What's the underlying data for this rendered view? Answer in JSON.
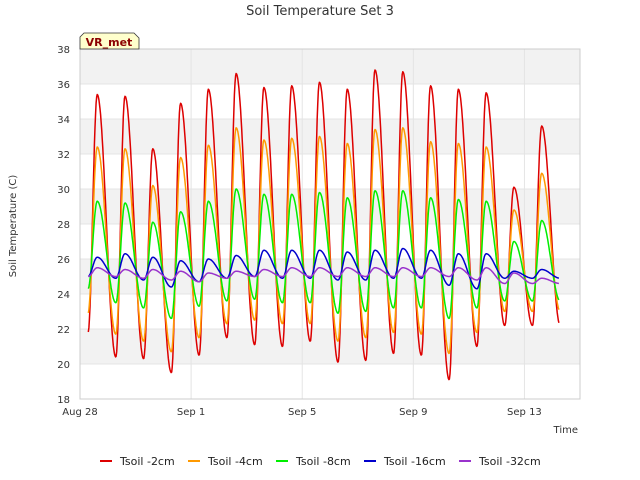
{
  "chart_data": {
    "type": "line",
    "title": "Soil Temperature Set 3",
    "xlabel": "Time",
    "ylabel": "Soil Temperature (C)",
    "tag": "VR_met",
    "x_unit": "days since Aug 28",
    "xlim": [
      0,
      18
    ],
    "ylim": [
      18,
      38
    ],
    "yticks": [
      18,
      20,
      22,
      24,
      26,
      28,
      30,
      32,
      34,
      36,
      38
    ],
    "xticks": [
      {
        "value": 0,
        "label": "Aug 28"
      },
      {
        "value": 4,
        "label": "Sep 1"
      },
      {
        "value": 8,
        "label": "Sep 5"
      },
      {
        "value": 12,
        "label": "Sep 9"
      },
      {
        "value": 16,
        "label": "Sep 13"
      }
    ],
    "grid": true,
    "legend_position": "bottom",
    "series": [
      {
        "name": "Tsoil -2cm",
        "color": "#dd0000",
        "daily_min": [
          21.8,
          20.4,
          20.3,
          19.5,
          20.5,
          21.5,
          21.1,
          21.0,
          21.3,
          20.1,
          20.2,
          20.6,
          20.5,
          19.1,
          21.0,
          22.2
        ],
        "daily_max": [
          35.4,
          35.3,
          32.3,
          34.9,
          35.7,
          36.6,
          35.8,
          35.9,
          36.1,
          35.7,
          36.8,
          36.7,
          35.9,
          35.7,
          35.5,
          30.1,
          33.6
        ]
      },
      {
        "name": "Tsoil -4cm",
        "color": "#ff9900",
        "daily_min": [
          22.9,
          21.7,
          21.3,
          20.7,
          21.5,
          22.3,
          22.5,
          22.3,
          22.3,
          21.3,
          21.5,
          21.8,
          21.7,
          20.6,
          21.8,
          23.0
        ],
        "daily_max": [
          32.4,
          32.3,
          30.2,
          31.8,
          32.5,
          33.5,
          32.8,
          32.9,
          33.0,
          32.6,
          33.4,
          33.5,
          32.7,
          32.6,
          32.4,
          28.8,
          30.9
        ]
      },
      {
        "name": "Tsoil -8cm",
        "color": "#00ee00",
        "daily_min": [
          24.3,
          23.5,
          23.2,
          22.6,
          23.3,
          23.6,
          23.7,
          23.5,
          23.5,
          22.9,
          23.0,
          23.2,
          23.2,
          22.6,
          23.2,
          23.6
        ],
        "daily_max": [
          29.3,
          29.2,
          28.1,
          28.7,
          29.3,
          30.0,
          29.7,
          29.7,
          29.8,
          29.5,
          29.9,
          29.9,
          29.5,
          29.4,
          29.3,
          27.0,
          28.2
        ]
      },
      {
        "name": "Tsoil -16cm",
        "color": "#0000cc",
        "daily_min": [
          25.0,
          24.9,
          24.8,
          24.4,
          24.7,
          24.9,
          25.0,
          24.9,
          24.9,
          24.8,
          24.8,
          24.9,
          24.9,
          24.5,
          24.3,
          24.9
        ],
        "daily_max": [
          26.1,
          26.3,
          26.1,
          25.9,
          26.0,
          26.2,
          26.5,
          26.5,
          26.5,
          26.4,
          26.5,
          26.6,
          26.5,
          26.3,
          26.3,
          25.3,
          25.4
        ]
      },
      {
        "name": "Tsoil -32cm",
        "color": "#9933cc",
        "daily_min": [
          25.0,
          25.0,
          24.9,
          24.8,
          24.7,
          24.9,
          25.0,
          25.0,
          25.0,
          25.0,
          25.0,
          25.0,
          25.0,
          25.0,
          24.8,
          24.6
        ],
        "daily_max": [
          25.5,
          25.4,
          25.4,
          25.3,
          25.2,
          25.3,
          25.4,
          25.5,
          25.5,
          25.5,
          25.5,
          25.5,
          25.5,
          25.5,
          25.5,
          25.2,
          24.9
        ]
      }
    ]
  }
}
